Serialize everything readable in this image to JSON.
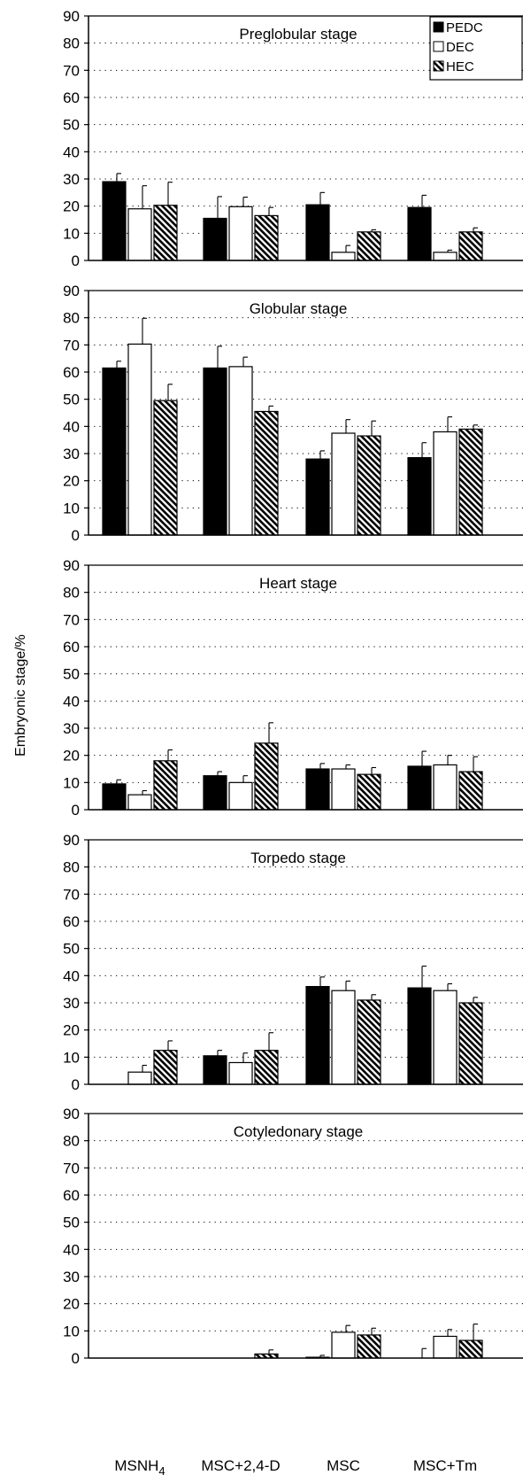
{
  "chart_data": {
    "type": "bar",
    "ylabel": "Embryonic stage/%",
    "categories": [
      "MSNH4",
      "MSC+2,4-D",
      "MSC",
      "MSC+Tm"
    ],
    "category_labels": [
      {
        "main": "MSNH",
        "sub": "4"
      },
      {
        "main": "MSC+2,4-D",
        "sub": ""
      },
      {
        "main": "MSC",
        "sub": ""
      },
      {
        "main": "MSC+Tm",
        "sub": ""
      }
    ],
    "ylim": [
      0,
      90
    ],
    "yticks": [
      "0",
      "10",
      "20",
      "30",
      "40",
      "50",
      "60",
      "70",
      "80",
      "90"
    ],
    "grid": "dotted horizontal",
    "legend": {
      "placement": "top-right",
      "entries": [
        "PEDC",
        "DEC",
        "HEC"
      ]
    },
    "series_styles": [
      {
        "fill": "#000000",
        "pattern": "solid"
      },
      {
        "fill": "#ffffff",
        "pattern": "none"
      },
      {
        "fill": "#ffffff",
        "pattern": "diagonal-hatch"
      }
    ],
    "panels": [
      {
        "title": "Preglobular stage",
        "series": [
          {
            "name": "PEDC",
            "values": [
              29,
              15.5,
              20.5,
              19.5
            ],
            "errors": [
              3,
              8,
              4.5,
              4.5
            ]
          },
          {
            "name": "DEC",
            "values": [
              19,
              19.8,
              3,
              3
            ],
            "errors": [
              8.5,
              3.5,
              2.5,
              0.8
            ]
          },
          {
            "name": "HEC",
            "values": [
              20.3,
              16.5,
              10.5,
              10.5
            ],
            "errors": [
              8.5,
              3,
              0.8,
              1.5
            ]
          }
        ]
      },
      {
        "title": "Globular stage",
        "series": [
          {
            "name": "PEDC",
            "values": [
              61.5,
              61.5,
              28,
              28.5
            ],
            "errors": [
              2.5,
              8,
              3,
              5.5
            ]
          },
          {
            "name": "DEC",
            "values": [
              70.3,
              62,
              37.5,
              38
            ],
            "errors": [
              9.5,
              3.5,
              5,
              5.5
            ]
          },
          {
            "name": "HEC",
            "values": [
              49.5,
              45.5,
              36.5,
              39
            ],
            "errors": [
              6,
              2,
              5.5,
              1.5
            ]
          }
        ]
      },
      {
        "title": "Heart stage",
        "series": [
          {
            "name": "PEDC",
            "values": [
              9.5,
              12.5,
              15,
              16
            ],
            "errors": [
              1.5,
              1.5,
              2,
              5.5
            ]
          },
          {
            "name": "DEC",
            "values": [
              5.5,
              10,
              15,
              16.5
            ],
            "errors": [
              1.5,
              2.5,
              1.5,
              3.5
            ]
          },
          {
            "name": "HEC",
            "values": [
              18,
              24.5,
              13,
              14
            ],
            "errors": [
              4,
              7.5,
              2.5,
              5.5
            ]
          }
        ]
      },
      {
        "title": "Torpedo stage",
        "series": [
          {
            "name": "PEDC",
            "values": [
              0,
              10.5,
              36,
              35.5
            ],
            "errors": [
              0,
              2,
              3.5,
              8
            ]
          },
          {
            "name": "DEC",
            "values": [
              4.5,
              8,
              34.5,
              34.5
            ],
            "errors": [
              2.5,
              3.5,
              3.5,
              2.5
            ]
          },
          {
            "name": "HEC",
            "values": [
              12.5,
              12.5,
              31,
              30
            ],
            "errors": [
              3.5,
              6.5,
              2,
              2
            ]
          }
        ]
      },
      {
        "title": "Cotyledonary stage",
        "series": [
          {
            "name": "PEDC",
            "values": [
              0,
              0,
              0.3,
              0
            ],
            "errors": [
              0,
              0,
              0.7,
              3.5
            ]
          },
          {
            "name": "DEC",
            "values": [
              0,
              0,
              9.5,
              8
            ],
            "errors": [
              0,
              0,
              2.5,
              2.5
            ]
          },
          {
            "name": "HEC",
            "values": [
              0,
              1.5,
              8.5,
              6.5
            ],
            "errors": [
              0,
              1.5,
              2.5,
              6
            ]
          }
        ]
      }
    ]
  }
}
